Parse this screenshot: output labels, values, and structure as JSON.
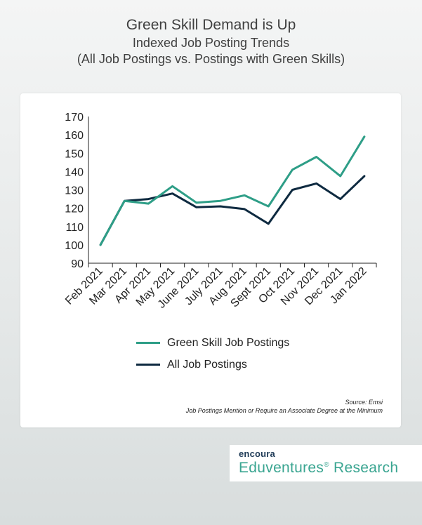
{
  "header": {
    "title": "Green Skill Demand is Up",
    "subtitle_1": "Indexed Job Posting Trends",
    "subtitle_2": "(All Job Postings vs. Postings with Green Skills)"
  },
  "chart_data": {
    "type": "line",
    "title": "Green Skill Demand is Up",
    "xlabel": "",
    "ylabel": "",
    "ylim": [
      90,
      170
    ],
    "yticks": [
      90,
      100,
      110,
      120,
      130,
      140,
      150,
      160,
      170
    ],
    "grid": false,
    "legend_position": "bottom",
    "categories": [
      "Feb 2021",
      "Mar 2021",
      "Apr 2021",
      "May 2021",
      "June 2021",
      "July 2021",
      "Aug 2021",
      "Sept 2021",
      "Oct 2021",
      "Nov 2021",
      "Dec 2021",
      "Jan 2022"
    ],
    "series": [
      {
        "name": "Green Skill Job Postings",
        "color": "#2e9e87",
        "values": [
          100,
          124,
          122.5,
          132,
          123,
          124,
          127,
          121,
          141,
          148,
          137.5,
          159
        ]
      },
      {
        "name": "All Job Postings",
        "color": "#0e2a40",
        "values": [
          100,
          124,
          125,
          128,
          120.5,
          121,
          119.5,
          111.5,
          130,
          133.5,
          125,
          137.5
        ]
      }
    ]
  },
  "source": {
    "line1": "Source: Emsi",
    "line2": "Job Postings Mention or Require an Associate Degree at the Minimum"
  },
  "brand": {
    "top": "encoura",
    "bottom": "Eduventures",
    "bottom_mark": "®",
    "bottom_suffix": " Research"
  }
}
